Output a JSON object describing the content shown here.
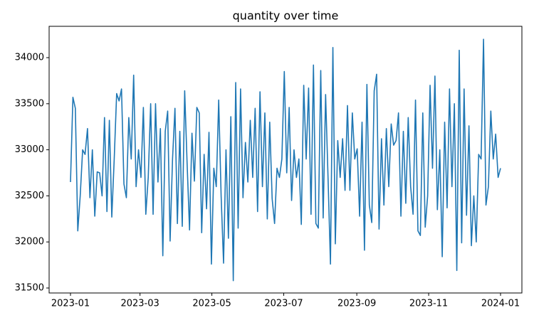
{
  "chart_data": {
    "type": "line",
    "title": "quantity over time",
    "xticks": [
      "2023-01",
      "2023-03",
      "2023-05",
      "2023-07",
      "2023-09",
      "2023-11",
      "2024-01"
    ],
    "ylim": [
      31446,
      34340
    ],
    "yticks": [
      31500,
      32000,
      32500,
      33000,
      33500,
      34000
    ],
    "series": [
      {
        "color": "#1f77b4",
        "values": [
          32650,
          33570,
          33450,
          32120,
          32500,
          33000,
          32950,
          33230,
          32480,
          33000,
          32280,
          32760,
          32750,
          32500,
          33350,
          32330,
          33320,
          32270,
          32900,
          33610,
          33530,
          33660,
          32630,
          32480,
          33350,
          32900,
          33810,
          32600,
          33000,
          32700,
          33460,
          32300,
          32700,
          33500,
          32300,
          33500,
          32650,
          33230,
          31850,
          33200,
          33420,
          32010,
          32900,
          33450,
          32200,
          33200,
          32170,
          33640,
          32850,
          32130,
          33180,
          32660,
          33460,
          33400,
          32100,
          32950,
          32360,
          33190,
          31760,
          32800,
          32600,
          33540,
          32500,
          31770,
          33000,
          32040,
          33360,
          31580,
          33730,
          32150,
          33660,
          32480,
          33080,
          32650,
          33320,
          32700,
          33450,
          32330,
          33630,
          32600,
          33400,
          32250,
          33300,
          32470,
          32200,
          32800,
          32700,
          32900,
          33850,
          32750,
          33460,
          32450,
          33000,
          32700,
          32900,
          32190,
          33700,
          32900,
          33670,
          32300,
          33920,
          32200,
          32150,
          33860,
          32260,
          33600,
          32700,
          31760,
          34110,
          31980,
          33100,
          32700,
          33120,
          32560,
          33480,
          32560,
          33400,
          32900,
          33010,
          32280,
          33300,
          31910,
          33710,
          32400,
          32210,
          33640,
          33820,
          32140,
          33120,
          32400,
          33230,
          32600,
          33280,
          33050,
          33100,
          33400,
          32280,
          33200,
          32420,
          33350,
          32600,
          32300,
          33540,
          32120,
          32070,
          33400,
          32160,
          32500,
          33700,
          32800,
          33800,
          32350,
          33000,
          31840,
          33300,
          32370,
          33660,
          32600,
          33500,
          31690,
          34080,
          31990,
          33660,
          32290,
          33260,
          31960,
          32500,
          32000,
          32950,
          32900,
          34200,
          32400,
          32600,
          33420,
          32900,
          33170,
          32700,
          32800
        ]
      }
    ]
  }
}
